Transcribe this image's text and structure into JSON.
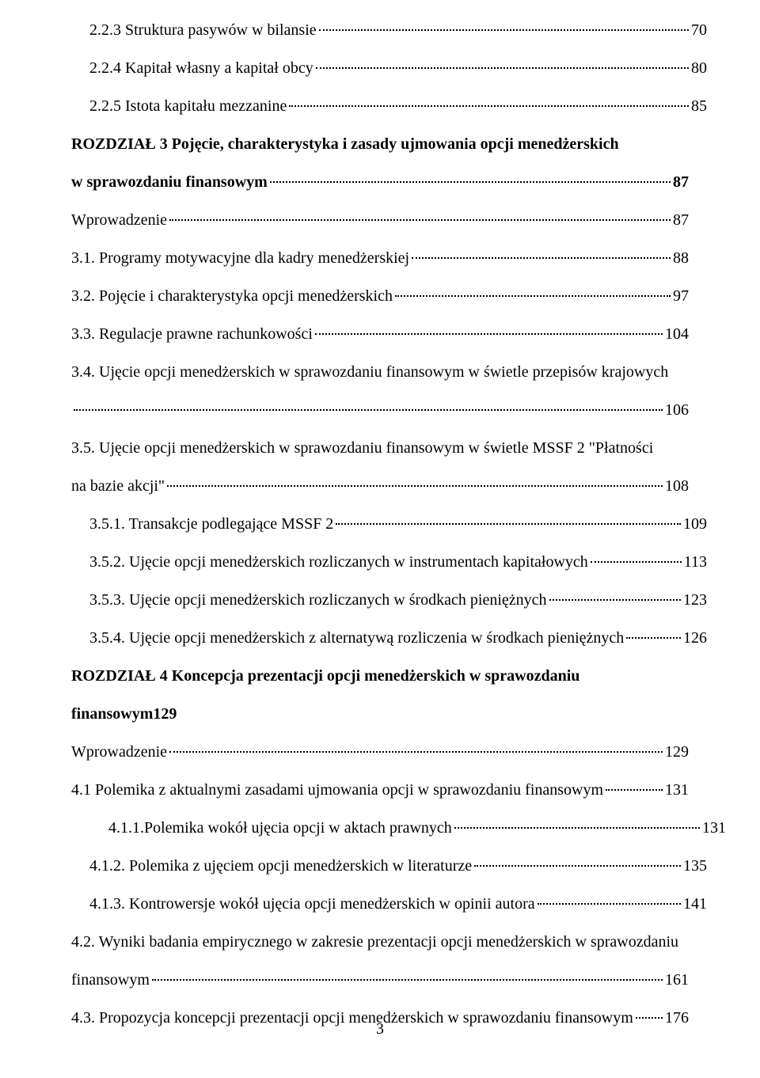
{
  "document": {
    "page_number": "3",
    "text_color": "#000000",
    "background_color": "#ffffff",
    "font_family": "Times New Roman",
    "base_fontsize_pt": 12
  },
  "toc": {
    "entries": [
      {
        "id": "e223",
        "indent": 1,
        "bold": false,
        "label": "2.2.3 Struktura pasywów w bilansie",
        "page": "70",
        "mode": "line"
      },
      {
        "id": "e224",
        "indent": 1,
        "bold": false,
        "label": "2.2.4 Kapitał własny a kapitał obcy",
        "page": "80",
        "mode": "line"
      },
      {
        "id": "e225",
        "indent": 1,
        "bold": false,
        "label": "2.2.5 Istota kapitału mezzanine",
        "page": "85",
        "mode": "line"
      },
      {
        "id": "roz3",
        "indent": 0,
        "bold": true,
        "first": "ROZDZIAŁ 3 Pojęcie, charakterystyka i zasady ujmowania opcji menedżerskich",
        "last": "w sprawozdaniu finansowym",
        "page": "87",
        "mode": "multi"
      },
      {
        "id": "wpr3",
        "indent": 0,
        "bold": false,
        "label": "Wprowadzenie",
        "page": "87",
        "mode": "line"
      },
      {
        "id": "e31",
        "indent": 0,
        "bold": false,
        "label": "3.1. Programy motywacyjne dla kadry menedżerskiej",
        "page": "88",
        "mode": "line"
      },
      {
        "id": "e32",
        "indent": 0,
        "bold": false,
        "label": "3.2. Pojęcie i charakterystyka opcji menedżerskich",
        "page": "97",
        "mode": "line"
      },
      {
        "id": "e33",
        "indent": 0,
        "bold": false,
        "label": "3.3. Regulacje prawne rachunkowości",
        "page": "104",
        "mode": "line"
      },
      {
        "id": "e34",
        "indent": 0,
        "bold": false,
        "first": "3.4. Ujęcie opcji menedżerskich w sprawozdaniu finansowym w świetle przepisów krajowych",
        "last": "",
        "page": "106",
        "mode": "multi"
      },
      {
        "id": "e35",
        "indent": 0,
        "bold": false,
        "first": "3.5. Ujęcie opcji menedżerskich w sprawozdaniu finansowym w świetle MSSF 2 \"Płatności",
        "last": "na bazie akcji\"",
        "page": "108",
        "mode": "multi"
      },
      {
        "id": "e351",
        "indent": 1,
        "bold": false,
        "label": "3.5.1. Transakcje podlegające MSSF 2",
        "page": "109",
        "mode": "line"
      },
      {
        "id": "e352",
        "indent": 1,
        "bold": false,
        "label": "3.5.2. Ujęcie opcji menedżerskich rozliczanych w instrumentach kapitałowych",
        "page": "113",
        "mode": "line"
      },
      {
        "id": "e353",
        "indent": 1,
        "bold": false,
        "label": "3.5.3. Ujęcie opcji menedżerskich rozliczanych w środkach pieniężnych",
        "page": "123",
        "mode": "line"
      },
      {
        "id": "e354",
        "indent": 1,
        "bold": false,
        "label": "3.5.4. Ujęcie opcji menedżerskich z alternatywą rozliczenia w środkach pieniężnych",
        "page": "126",
        "mode": "line"
      },
      {
        "id": "roz4",
        "indent": 0,
        "bold": true,
        "label": "ROZDZIAŁ 4 Koncepcja prezentacji opcji menedżerskich w sprawozdaniu finansowym",
        "page": "129",
        "mode": "inline"
      },
      {
        "id": "wpr4",
        "indent": 0,
        "bold": false,
        "label": "Wprowadzenie",
        "page": "129",
        "mode": "line"
      },
      {
        "id": "e41",
        "indent": 0,
        "bold": false,
        "label": "4.1 Polemika z aktualnymi zasadami ujmowania opcji w sprawozdaniu finansowym",
        "page": "131",
        "mode": "line"
      },
      {
        "id": "e411",
        "indent": 2,
        "bold": false,
        "label": "4.1.1.Polemika wokół ujęcia opcji w aktach prawnych",
        "page": "131",
        "mode": "line"
      },
      {
        "id": "e412",
        "indent": 1,
        "bold": false,
        "label": "4.1.2. Polemika z ujęciem opcji menedżerskich w literaturze",
        "page": "135",
        "mode": "line"
      },
      {
        "id": "e413",
        "indent": 1,
        "bold": false,
        "label": "4.1.3. Kontrowersje wokół ujęcia opcji menedżerskich w opinii autora",
        "page": "141",
        "mode": "line"
      },
      {
        "id": "e42",
        "indent": 0,
        "bold": false,
        "first": "4.2. Wyniki badania empirycznego w zakresie prezentacji opcji menedżerskich w sprawozdaniu",
        "last": "finansowym",
        "page": "161",
        "mode": "multi"
      },
      {
        "id": "e43",
        "indent": 0,
        "bold": false,
        "label": "4.3. Propozycja koncepcji prezentacji opcji menedżerskich w sprawozdaniu finansowym",
        "page": "176",
        "mode": "line"
      }
    ]
  }
}
